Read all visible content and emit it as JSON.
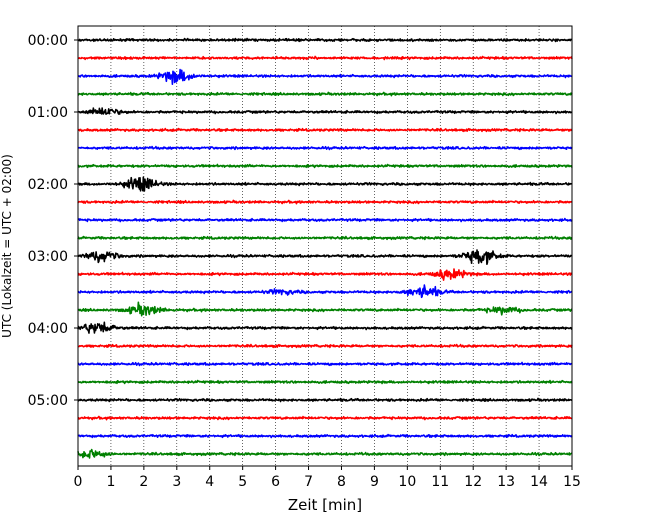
{
  "chart_data": {
    "type": "line",
    "title": "",
    "xlabel": "Zeit  [min]",
    "ylabel": "UTC (Lokalzeit = UTC + 02:00)",
    "xlim": [
      0,
      15
    ],
    "x_ticks": [
      "0",
      "1",
      "2",
      "3",
      "4",
      "5",
      "6",
      "7",
      "8",
      "9",
      "10",
      "11",
      "12",
      "13",
      "14",
      "15"
    ],
    "y_ticks": [
      "00:00",
      "01:00",
      "02:00",
      "03:00",
      "04:00",
      "05:00"
    ],
    "grid": "vertical-dotted",
    "colors": [
      "#000000",
      "#ff0000",
      "#0000ff",
      "#008000"
    ],
    "traces_per_hour": 4,
    "minutes_per_trace": 15,
    "series": [
      {
        "start": "00:00",
        "color": "#000000",
        "bursts": []
      },
      {
        "start": "00:15",
        "color": "#ff0000",
        "bursts": []
      },
      {
        "start": "00:30",
        "color": "#0000ff",
        "bursts": [
          [
            3.0,
            6.0
          ]
        ]
      },
      {
        "start": "00:45",
        "color": "#008000",
        "bursts": []
      },
      {
        "start": "01:00",
        "color": "#000000",
        "bursts": [
          [
            0.8,
            3.5
          ]
        ]
      },
      {
        "start": "01:15",
        "color": "#ff0000",
        "bursts": []
      },
      {
        "start": "01:30",
        "color": "#0000ff",
        "bursts": []
      },
      {
        "start": "01:45",
        "color": "#008000",
        "bursts": []
      },
      {
        "start": "02:00",
        "color": "#000000",
        "bursts": [
          [
            1.9,
            6.5
          ]
        ]
      },
      {
        "start": "02:15",
        "color": "#ff0000",
        "bursts": []
      },
      {
        "start": "02:30",
        "color": "#0000ff",
        "bursts": []
      },
      {
        "start": "02:45",
        "color": "#008000",
        "bursts": []
      },
      {
        "start": "03:00",
        "color": "#000000",
        "bursts": [
          [
            0.7,
            5.0
          ],
          [
            12.2,
            7.0
          ]
        ]
      },
      {
        "start": "03:15",
        "color": "#ff0000",
        "bursts": [
          [
            11.3,
            4.5
          ]
        ]
      },
      {
        "start": "03:30",
        "color": "#0000ff",
        "bursts": [
          [
            10.5,
            5.5
          ],
          [
            6.2,
            2.0
          ]
        ]
      },
      {
        "start": "03:45",
        "color": "#008000",
        "bursts": [
          [
            2.0,
            5.0
          ],
          [
            12.9,
            3.0
          ]
        ]
      },
      {
        "start": "04:00",
        "color": "#000000",
        "bursts": [
          [
            0.6,
            5.5
          ]
        ]
      },
      {
        "start": "04:15",
        "color": "#ff0000",
        "bursts": []
      },
      {
        "start": "04:30",
        "color": "#0000ff",
        "bursts": []
      },
      {
        "start": "04:45",
        "color": "#008000",
        "bursts": []
      },
      {
        "start": "05:00",
        "color": "#000000",
        "bursts": []
      },
      {
        "start": "05:15",
        "color": "#ff0000",
        "bursts": []
      },
      {
        "start": "05:30",
        "color": "#0000ff",
        "bursts": []
      },
      {
        "start": "05:45",
        "color": "#008000",
        "bursts": [
          [
            0.4,
            4.0
          ]
        ]
      }
    ]
  }
}
